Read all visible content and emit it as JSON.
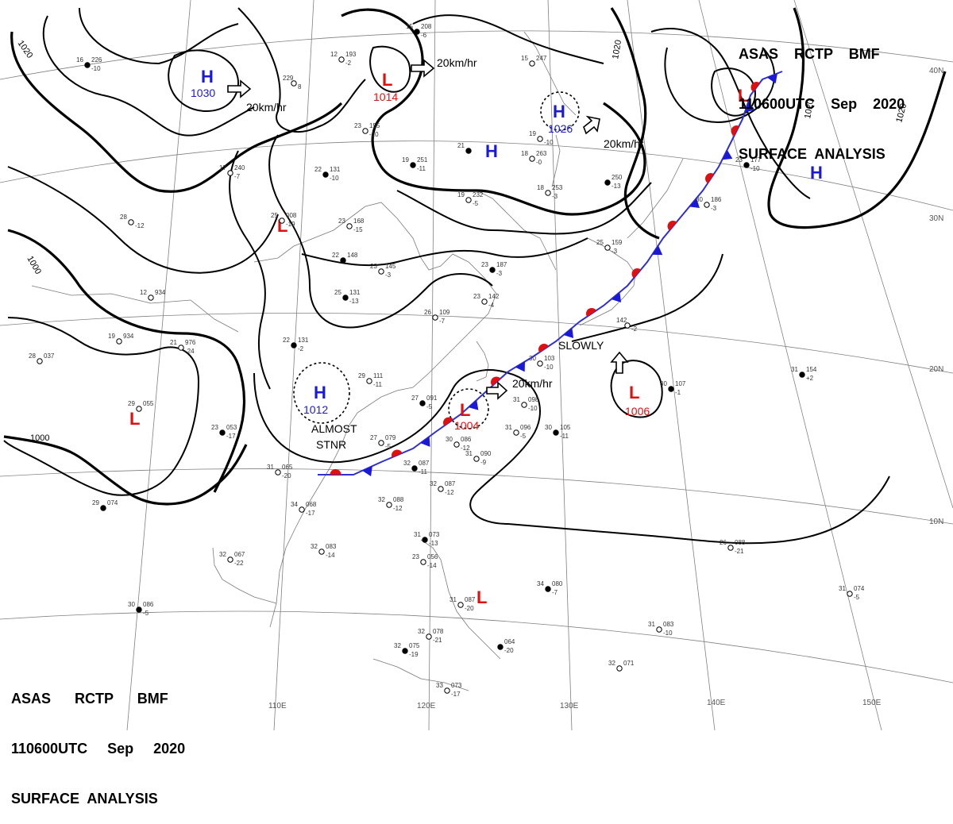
{
  "header": {
    "line1": "ASAS    RCTP    BMF",
    "line2": "110600UTC    Sep    2020",
    "line3": "SURFACE  ANALYSIS"
  },
  "footer": {
    "line1": "ASAS      RCTP      BMF",
    "line2": "110600UTC     Sep     2020",
    "line3": "SURFACE  ANALYSIS"
  },
  "colors": {
    "high": "#1a1ad6",
    "low": "#e01010",
    "isobar": "#000000",
    "coast": "#7a7a7a"
  },
  "grid_labels": {
    "lon": [
      "110E",
      "120E",
      "130E",
      "140E",
      "150E"
    ],
    "lat": [
      "40N",
      "30N",
      "20N",
      "10N"
    ]
  },
  "isobar_labels": [
    "1020",
    "1020",
    "1020",
    "1020",
    "1000",
    "1000"
  ],
  "pressure_centers": [
    {
      "type": "H",
      "value": "1030"
    },
    {
      "type": "L",
      "value": "1014"
    },
    {
      "type": "H",
      "value": "1026"
    },
    {
      "type": "H",
      "value": ""
    },
    {
      "type": "L",
      "value": ""
    },
    {
      "type": "H",
      "value": ""
    },
    {
      "type": "L",
      "value": ""
    },
    {
      "type": "L",
      "value": ""
    },
    {
      "type": "H",
      "value": "1012"
    },
    {
      "type": "L",
      "value": "1004"
    },
    {
      "type": "L",
      "value": "1006"
    },
    {
      "type": "L",
      "value": ""
    }
  ],
  "motion_labels": [
    "20km/hr",
    "20km/hr",
    "20km/hr",
    "20km/hr",
    "SLOWLY",
    "ALMOST",
    "STNR"
  ],
  "front": {
    "type": "stationary"
  },
  "stations": [
    {
      "t": "16",
      "p": "226",
      "d": "-10"
    },
    {
      "t": "229",
      "p": "",
      "d": "8"
    },
    {
      "t": "12",
      "p": "193",
      "d": "-2"
    },
    {
      "t": "15",
      "p": "208",
      "d": "-6"
    },
    {
      "t": "15",
      "p": "247",
      "d": ""
    },
    {
      "t": "23",
      "p": "155",
      "d": "-10"
    },
    {
      "t": "21",
      "p": "",
      "d": ""
    },
    {
      "t": "19",
      "p": "",
      "d": "-10"
    },
    {
      "t": "18",
      "p": "263",
      "d": "-0"
    },
    {
      "t": "22",
      "p": "131",
      "d": "-10"
    },
    {
      "t": "17",
      "p": "240",
      "d": "-7"
    },
    {
      "t": "25",
      "p": "008",
      "d": "-19"
    },
    {
      "t": "19",
      "p": "251",
      "d": "-11"
    },
    {
      "t": "19",
      "p": "232",
      "d": "-5"
    },
    {
      "t": "18",
      "p": "253",
      "d": "-3"
    },
    {
      "t": "",
      "p": "250",
      "d": "-13"
    },
    {
      "t": "23",
      "p": "168",
      "d": "-15"
    },
    {
      "t": "23",
      "p": "145",
      "d": "-3"
    },
    {
      "t": "22",
      "p": "148",
      "d": ""
    },
    {
      "t": "25",
      "p": "159",
      "d": "-3"
    },
    {
      "t": "30",
      "p": "186",
      "d": "-3"
    },
    {
      "t": "23",
      "p": "177",
      "d": "-10"
    },
    {
      "t": "28",
      "p": "",
      "d": "-12"
    },
    {
      "t": "12",
      "p": "934",
      "d": ""
    },
    {
      "t": "25",
      "p": "131",
      "d": "-13"
    },
    {
      "t": "26",
      "p": "109",
      "d": "-7"
    },
    {
      "t": "23",
      "p": "142",
      "d": "-4"
    },
    {
      "t": "23",
      "p": "187",
      "d": "-3"
    },
    {
      "t": "19",
      "p": "934",
      "d": ""
    },
    {
      "t": "21",
      "p": "976",
      "d": "-24"
    },
    {
      "t": "22",
      "p": "131",
      "d": "-2"
    },
    {
      "t": "28",
      "p": "037",
      "d": ""
    },
    {
      "t": "29",
      "p": "111",
      "d": "-11"
    },
    {
      "t": "27",
      "p": "091",
      "d": "-5"
    },
    {
      "t": "30",
      "p": "103",
      "d": "-10"
    },
    {
      "t": "142",
      "p": "",
      "d": "-2"
    },
    {
      "t": "31",
      "p": "154",
      "d": "+2"
    },
    {
      "t": "29",
      "p": "055",
      "d": ""
    },
    {
      "t": "27",
      "p": "079",
      "d": "-5"
    },
    {
      "t": "23",
      "p": "053",
      "d": "-17"
    },
    {
      "t": "31",
      "p": "098",
      "d": "-10"
    },
    {
      "t": "31",
      "p": "096",
      "d": "-5"
    },
    {
      "t": "30",
      "p": "105",
      "d": "-11"
    },
    {
      "t": "30",
      "p": "086",
      "d": "-12"
    },
    {
      "t": "31",
      "p": "090",
      "d": "-9"
    },
    {
      "t": "30",
      "p": "107",
      "d": "-1"
    },
    {
      "t": "31",
      "p": "065",
      "d": "-20"
    },
    {
      "t": "34",
      "p": "068",
      "d": "-17"
    },
    {
      "t": "32",
      "p": "087",
      "d": "-11"
    },
    {
      "t": "32",
      "p": "087",
      "d": "-12"
    },
    {
      "t": "32",
      "p": "088",
      "d": "-12"
    },
    {
      "t": "29",
      "p": "074",
      "d": ""
    },
    {
      "t": "32",
      "p": "083",
      "d": "-14"
    },
    {
      "t": "32",
      "p": "067",
      "d": "-22"
    },
    {
      "t": "31",
      "p": "073",
      "d": "-13"
    },
    {
      "t": "23",
      "p": "056",
      "d": "-14"
    },
    {
      "t": "26",
      "p": "088",
      "d": "-21"
    },
    {
      "t": "34",
      "p": "080",
      "d": "-7"
    },
    {
      "t": "31",
      "p": "074",
      "d": "-5"
    },
    {
      "t": "31",
      "p": "087",
      "d": "-20"
    },
    {
      "t": "30",
      "p": "086",
      "d": "-5"
    },
    {
      "t": "32",
      "p": "078",
      "d": "-21"
    },
    {
      "t": "31",
      "p": "083",
      "d": "-10"
    },
    {
      "t": "32",
      "p": "075",
      "d": "-19"
    },
    {
      "t": "32",
      "p": "071",
      "d": ""
    },
    {
      "t": "33",
      "p": "073",
      "d": "-17"
    },
    {
      "t": "",
      "p": "064",
      "d": "-20"
    }
  ]
}
